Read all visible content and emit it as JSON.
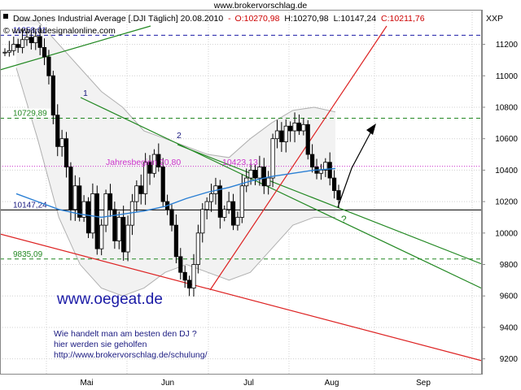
{
  "site_url": "www.brokervorschlag.de",
  "header": {
    "instrument": "Dow Jones Industrial Average [.DJI  Täglich] 20.08.2010",
    "open": "O:10270,98",
    "high": "H:10270,98",
    "low": "L:10147,24",
    "close": "C:10211,76",
    "symbol": "XXP",
    "copyright": "© www.tradesignalonline.com"
  },
  "levels": [
    {
      "label": "11258,01",
      "value": 11258,
      "color": "#1a1aa6",
      "style": "dashed"
    },
    {
      "label": "10729,89",
      "value": 10730,
      "color": "#228822",
      "style": "dashed"
    },
    {
      "label": "10147,24",
      "value": 10147,
      "color": "#000000",
      "style": "solid"
    },
    {
      "label": "9835,09",
      "value": 9835,
      "color": "#228822",
      "style": "dashed"
    },
    {
      "label": "",
      "value": 10425,
      "color": "#cc33cc",
      "style": "dotted"
    }
  ],
  "annotations": {
    "jahresbeginn": "Jahresbeginn 20,80",
    "value_label": "10423,13",
    "wave1": "1",
    "wave2": "2",
    "question": "?"
  },
  "watermark": "www.oegeat.de",
  "note_lines": [
    "Wie handelt man am besten  den DJ ?",
    "hier werden sie geholfen",
    "http://www.brokervorschlag.de/schulung/"
  ],
  "chart_data": {
    "type": "candlestick",
    "title": "Dow Jones Industrial Average [.DJI  Täglich] 20.08.2010",
    "y_ticks": [
      9200,
      9400,
      9600,
      9800,
      10000,
      10200,
      10400,
      10600,
      10800,
      11000,
      11200
    ],
    "ylim": [
      9100,
      11420
    ],
    "x_ticks": [
      "Mai",
      "Jun",
      "Jul",
      "Aug",
      "Sep"
    ],
    "grid": true,
    "start_value": 11150,
    "closes": [
      11150,
      11160,
      11200,
      11180,
      11230,
      11245,
      11210,
      11250,
      11180,
      11120,
      11000,
      10750,
      10550,
      10600,
      10420,
      10150,
      10300,
      10100,
      10200,
      10000,
      10250,
      9900,
      10050,
      10250,
      10150,
      9950,
      10100,
      9880,
      10050,
      10200,
      10300,
      10250,
      10450,
      10380,
      10500,
      10420,
      10200,
      10150,
      10050,
      9850,
      9750,
      9700,
      9650,
      9800,
      10000,
      10150,
      10200,
      10250,
      10300,
      10100,
      10150,
      10200,
      10050,
      10100,
      10300,
      10350,
      10400,
      10350,
      10420,
      10300,
      10350,
      10600,
      10650,
      10580,
      10680,
      10650,
      10700,
      10650,
      10690,
      10500,
      10420,
      10380,
      10400,
      10450,
      10350,
      10270,
      10212
    ],
    "series": [
      {
        "name": "SMA",
        "values": [
          10250,
          10200,
          10150,
          10120,
          10100,
          10120,
          10140,
          10170,
          10220,
          10260,
          10290,
          10330,
          10360,
          10380,
          10400,
          10410
        ]
      },
      {
        "name": "Bollinger upper",
        "values": [
          11350,
          11350,
          11200,
          11050,
          10900,
          10800,
          10650,
          10600,
          10550,
          10500,
          10480,
          10600,
          10700,
          10780,
          10800,
          10770
        ]
      },
      {
        "name": "Bollinger lower",
        "values": [
          11050,
          10600,
          10100,
          9800,
          9650,
          9600,
          9650,
          9750,
          9800,
          9750,
          9700,
          9750,
          9900,
          10050,
          10100,
          10100
        ]
      }
    ]
  }
}
